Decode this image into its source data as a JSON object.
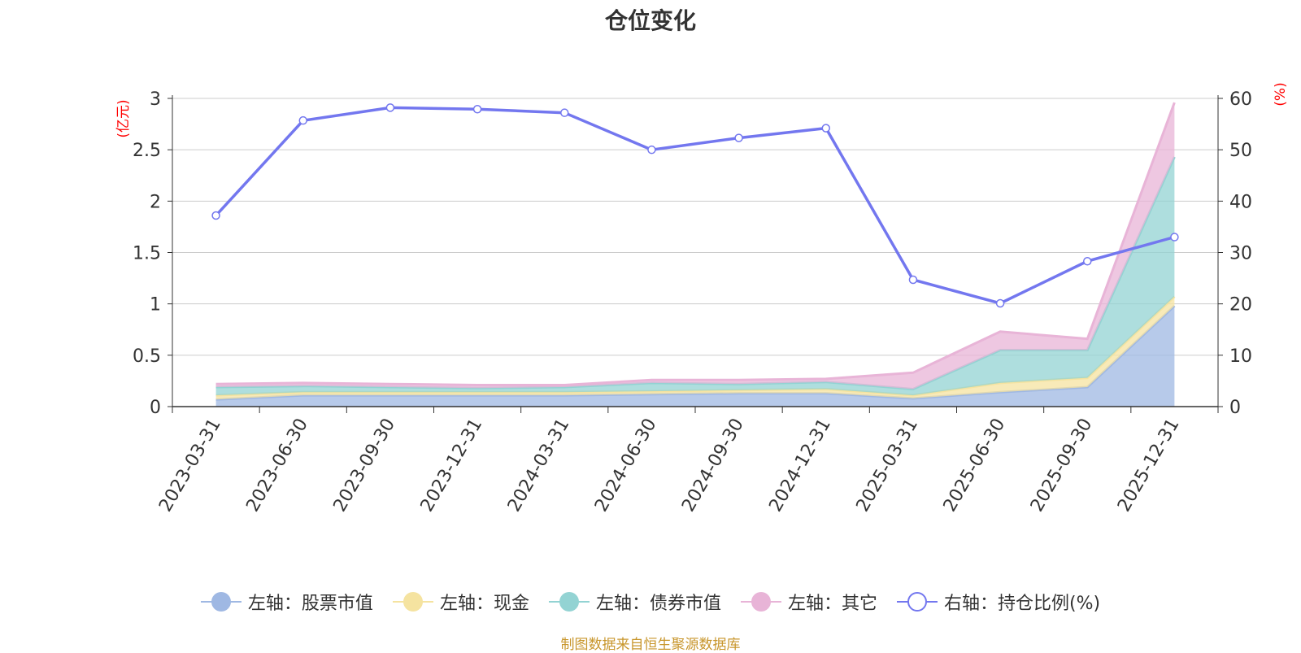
{
  "chart_data": {
    "type": "area",
    "title": "仓位变化",
    "source": "制图数据来自恒生聚源数据库",
    "left_axis_unit": "(亿元)",
    "right_axis_unit": "(%)",
    "ylim_left": [
      0,
      3
    ],
    "ylim_right": [
      0,
      60
    ],
    "left_ticks": [
      "0",
      "0.5",
      "1",
      "1.5",
      "2",
      "2.5",
      "3"
    ],
    "right_ticks": [
      "0",
      "10",
      "20",
      "30",
      "40",
      "50",
      "60"
    ],
    "categories": [
      "2023-03-31",
      "2023-06-30",
      "2023-09-30",
      "2023-12-31",
      "2024-03-31",
      "2024-06-30",
      "2024-09-30",
      "2024-12-31",
      "2025-03-31",
      "2025-06-30",
      "2025-09-30",
      "2025-12-31"
    ],
    "grid": true,
    "legend_position": "bottom",
    "series": [
      {
        "name": "左轴：股票市值",
        "axis": "left",
        "stack": true,
        "color": "#9fb8e3",
        "values": [
          0.07,
          0.11,
          0.11,
          0.11,
          0.11,
          0.12,
          0.13,
          0.13,
          0.08,
          0.14,
          0.19,
          0.98
        ]
      },
      {
        "name": "左轴：现金",
        "axis": "left",
        "stack": true,
        "color": "#f5e3a0",
        "values": [
          0.04,
          0.03,
          0.03,
          0.03,
          0.03,
          0.03,
          0.03,
          0.04,
          0.03,
          0.09,
          0.09,
          0.09
        ]
      },
      {
        "name": "左轴：债券市值",
        "axis": "left",
        "stack": true,
        "color": "#93d3d3",
        "values": [
          0.08,
          0.06,
          0.05,
          0.04,
          0.05,
          0.08,
          0.06,
          0.07,
          0.06,
          0.32,
          0.27,
          1.36
        ]
      },
      {
        "name": "左轴：其它",
        "axis": "left",
        "stack": true,
        "color": "#e8b4d7",
        "values": [
          0.03,
          0.03,
          0.03,
          0.03,
          0.02,
          0.03,
          0.04,
          0.03,
          0.16,
          0.18,
          0.11,
          0.53
        ]
      },
      {
        "name": "右轴：持仓比例(%)",
        "axis": "right",
        "stack": false,
        "color": "#7377ef",
        "values": [
          37.2,
          55.7,
          58.2,
          57.9,
          57.2,
          50.0,
          52.3,
          54.2,
          24.7,
          20.1,
          28.3,
          33.0
        ]
      }
    ]
  }
}
